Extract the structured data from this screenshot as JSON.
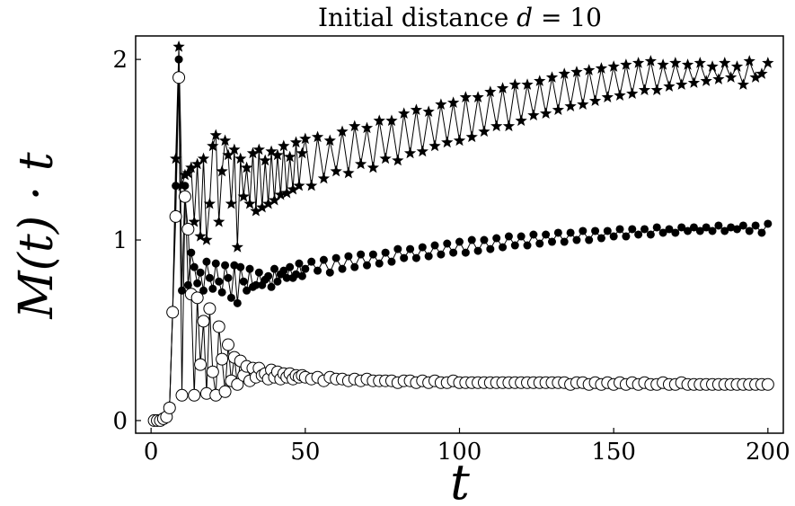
{
  "chart_data": {
    "type": "scatter",
    "title": "Initial distance d = 10",
    "title_parts": {
      "prefix": "Initial distance ",
      "var": "d",
      "suffix": " = 10"
    },
    "xlabel": "t",
    "ylabel": "M(t) · t",
    "xlim": [
      -5,
      205
    ],
    "ylim": [
      -0.07,
      2.13
    ],
    "xticks": [
      0,
      50,
      100,
      150,
      200
    ],
    "yticks": [
      0,
      1,
      2
    ],
    "grid": false,
    "legend": "none",
    "series": [
      {
        "marker": "star",
        "color": "#000000",
        "x": [
          1,
          2,
          3,
          4,
          5,
          6,
          7,
          8,
          9,
          10,
          11,
          12,
          13,
          14,
          15,
          16,
          17,
          18,
          19,
          20,
          21,
          22,
          23,
          24,
          25,
          26,
          27,
          28,
          29,
          30,
          31,
          32,
          33,
          34,
          35,
          36,
          37,
          38,
          39,
          40,
          41,
          42,
          43,
          44,
          45,
          46,
          47,
          48,
          49,
          50,
          52,
          54,
          56,
          58,
          60,
          62,
          64,
          66,
          68,
          70,
          72,
          74,
          76,
          78,
          80,
          82,
          84,
          86,
          88,
          90,
          92,
          94,
          96,
          98,
          100,
          102,
          104,
          106,
          108,
          110,
          112,
          114,
          116,
          118,
          120,
          122,
          124,
          126,
          128,
          130,
          132,
          134,
          136,
          138,
          140,
          142,
          144,
          146,
          148,
          150,
          152,
          154,
          156,
          158,
          160,
          162,
          164,
          166,
          168,
          170,
          172,
          174,
          176,
          178,
          180,
          182,
          184,
          186,
          188,
          190,
          192,
          194,
          196,
          198,
          200
        ],
        "y": [
          0.0,
          0.0,
          0.0,
          0.01,
          0.03,
          0.08,
          0.6,
          1.45,
          2.07,
          1.3,
          1.36,
          1.37,
          1.4,
          1.1,
          1.42,
          1.02,
          1.45,
          1.0,
          1.2,
          1.52,
          1.58,
          1.1,
          1.38,
          1.55,
          1.47,
          1.2,
          1.5,
          0.96,
          1.45,
          1.24,
          1.4,
          1.2,
          1.48,
          1.16,
          1.5,
          1.18,
          1.44,
          1.2,
          1.49,
          1.22,
          1.47,
          1.25,
          1.52,
          1.26,
          1.46,
          1.28,
          1.54,
          1.3,
          1.48,
          1.56,
          1.3,
          1.57,
          1.34,
          1.55,
          1.38,
          1.6,
          1.37,
          1.63,
          1.42,
          1.62,
          1.4,
          1.66,
          1.45,
          1.66,
          1.44,
          1.7,
          1.48,
          1.72,
          1.49,
          1.71,
          1.52,
          1.75,
          1.54,
          1.76,
          1.55,
          1.79,
          1.57,
          1.79,
          1.6,
          1.82,
          1.63,
          1.84,
          1.63,
          1.86,
          1.66,
          1.86,
          1.69,
          1.88,
          1.7,
          1.9,
          1.72,
          1.92,
          1.74,
          1.93,
          1.75,
          1.94,
          1.77,
          1.95,
          1.79,
          1.96,
          1.8,
          1.97,
          1.81,
          1.98,
          1.83,
          1.99,
          1.83,
          1.97,
          1.85,
          1.98,
          1.86,
          1.97,
          1.87,
          1.98,
          1.88,
          1.96,
          1.89,
          1.98,
          1.9,
          1.96,
          1.86,
          1.99,
          1.9,
          1.92,
          1.98
        ]
      },
      {
        "marker": "filled-circle",
        "color": "#000000",
        "x": [
          1,
          2,
          3,
          4,
          5,
          6,
          7,
          8,
          9,
          10,
          11,
          12,
          13,
          14,
          15,
          16,
          17,
          18,
          19,
          20,
          21,
          22,
          23,
          24,
          25,
          26,
          27,
          28,
          29,
          30,
          31,
          32,
          33,
          34,
          35,
          36,
          37,
          38,
          39,
          40,
          41,
          42,
          43,
          44,
          45,
          46,
          47,
          48,
          49,
          50,
          52,
          54,
          56,
          58,
          60,
          62,
          64,
          66,
          68,
          70,
          72,
          74,
          76,
          78,
          80,
          82,
          84,
          86,
          88,
          90,
          92,
          94,
          96,
          98,
          100,
          102,
          104,
          106,
          108,
          110,
          112,
          114,
          116,
          118,
          120,
          122,
          124,
          126,
          128,
          130,
          132,
          134,
          136,
          138,
          140,
          142,
          144,
          146,
          148,
          150,
          152,
          154,
          156,
          158,
          160,
          162,
          164,
          166,
          168,
          170,
          172,
          174,
          176,
          178,
          180,
          182,
          184,
          186,
          188,
          190,
          192,
          194,
          196,
          198,
          200
        ],
        "y": [
          0.0,
          0.0,
          0.0,
          0.01,
          0.03,
          0.08,
          0.61,
          1.3,
          2.0,
          0.72,
          1.3,
          0.75,
          0.93,
          0.85,
          0.76,
          0.82,
          0.72,
          0.88,
          0.79,
          0.73,
          0.87,
          0.77,
          0.71,
          0.86,
          0.79,
          0.68,
          0.86,
          0.65,
          0.85,
          0.77,
          0.72,
          0.84,
          0.74,
          0.75,
          0.82,
          0.75,
          0.78,
          0.8,
          0.74,
          0.84,
          0.77,
          0.81,
          0.83,
          0.79,
          0.85,
          0.79,
          0.81,
          0.87,
          0.8,
          0.84,
          0.88,
          0.83,
          0.89,
          0.82,
          0.9,
          0.84,
          0.91,
          0.85,
          0.92,
          0.86,
          0.92,
          0.87,
          0.93,
          0.88,
          0.95,
          0.9,
          0.95,
          0.9,
          0.96,
          0.91,
          0.97,
          0.92,
          0.98,
          0.93,
          0.99,
          0.93,
          1.0,
          0.94,
          1.0,
          0.95,
          1.01,
          0.96,
          1.02,
          0.97,
          1.02,
          0.97,
          1.03,
          0.98,
          1.03,
          0.99,
          1.04,
          0.99,
          1.04,
          1.0,
          1.05,
          1.0,
          1.05,
          1.01,
          1.05,
          1.02,
          1.06,
          1.02,
          1.06,
          1.03,
          1.06,
          1.03,
          1.07,
          1.04,
          1.06,
          1.04,
          1.07,
          1.05,
          1.07,
          1.05,
          1.07,
          1.05,
          1.08,
          1.05,
          1.07,
          1.06,
          1.08,
          1.05,
          1.08,
          1.04,
          1.09
        ]
      },
      {
        "marker": "open-circle",
        "color": "#000000",
        "x": [
          1,
          2,
          3,
          4,
          5,
          6,
          7,
          8,
          9,
          10,
          11,
          12,
          13,
          14,
          15,
          16,
          17,
          18,
          19,
          20,
          21,
          22,
          23,
          24,
          25,
          26,
          27,
          28,
          29,
          30,
          31,
          32,
          33,
          34,
          35,
          36,
          37,
          38,
          39,
          40,
          41,
          42,
          43,
          44,
          45,
          46,
          47,
          48,
          49,
          50,
          52,
          54,
          56,
          58,
          60,
          62,
          64,
          66,
          68,
          70,
          72,
          74,
          76,
          78,
          80,
          82,
          84,
          86,
          88,
          90,
          92,
          94,
          96,
          98,
          100,
          102,
          104,
          106,
          108,
          110,
          112,
          114,
          116,
          118,
          120,
          122,
          124,
          126,
          128,
          130,
          132,
          134,
          136,
          138,
          140,
          142,
          144,
          146,
          148,
          150,
          152,
          154,
          156,
          158,
          160,
          162,
          164,
          166,
          168,
          170,
          172,
          174,
          176,
          178,
          180,
          182,
          184,
          186,
          188,
          190,
          192,
          194,
          196,
          198,
          200
        ],
        "y": [
          0.0,
          0.0,
          0.0,
          0.01,
          0.02,
          0.07,
          0.6,
          1.13,
          1.9,
          0.14,
          1.24,
          1.06,
          0.7,
          0.14,
          0.68,
          0.31,
          0.55,
          0.15,
          0.62,
          0.27,
          0.14,
          0.52,
          0.34,
          0.16,
          0.42,
          0.22,
          0.35,
          0.2,
          0.33,
          0.25,
          0.3,
          0.22,
          0.29,
          0.24,
          0.29,
          0.25,
          0.26,
          0.23,
          0.28,
          0.24,
          0.27,
          0.23,
          0.26,
          0.24,
          0.26,
          0.23,
          0.25,
          0.24,
          0.25,
          0.24,
          0.23,
          0.24,
          0.22,
          0.24,
          0.23,
          0.23,
          0.22,
          0.23,
          0.22,
          0.23,
          0.22,
          0.22,
          0.22,
          0.22,
          0.21,
          0.22,
          0.22,
          0.21,
          0.22,
          0.21,
          0.22,
          0.21,
          0.21,
          0.22,
          0.21,
          0.21,
          0.21,
          0.21,
          0.21,
          0.21,
          0.21,
          0.21,
          0.21,
          0.21,
          0.21,
          0.21,
          0.21,
          0.21,
          0.21,
          0.21,
          0.21,
          0.21,
          0.2,
          0.21,
          0.21,
          0.2,
          0.21,
          0.2,
          0.21,
          0.2,
          0.21,
          0.2,
          0.21,
          0.2,
          0.21,
          0.2,
          0.2,
          0.21,
          0.2,
          0.2,
          0.21,
          0.2,
          0.2,
          0.2,
          0.2,
          0.2,
          0.2,
          0.2,
          0.2,
          0.2,
          0.2,
          0.2,
          0.2,
          0.2,
          0.2
        ]
      }
    ]
  }
}
